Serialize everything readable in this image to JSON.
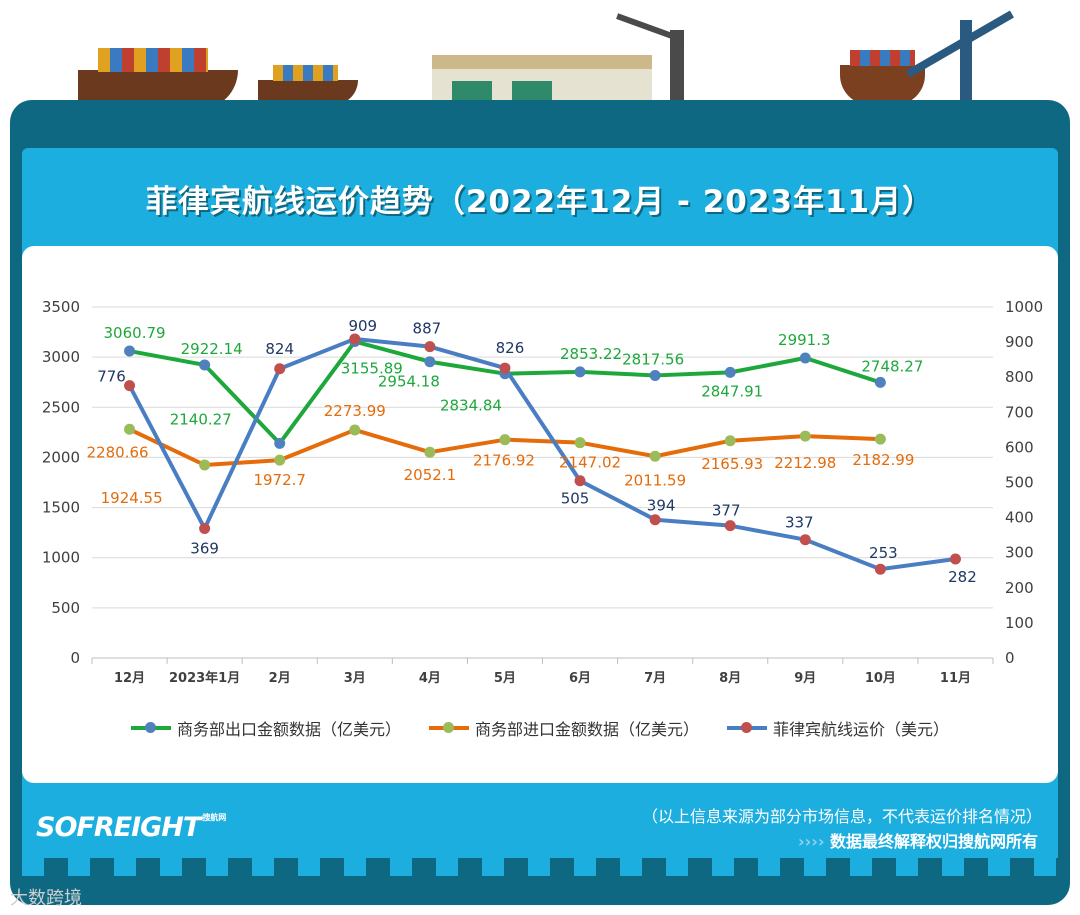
{
  "title": "菲律宾航线运价趋势（2022年12月 - 2023年11月）",
  "footer": {
    "note": "（以上信息来源为部分市场信息，不代表运价排名情况）",
    "arrows": "››››",
    "rights": "数据最终解释权归搜航网所有",
    "logo": "SOFREIGHT",
    "logo_sub": "搜航网",
    "watermark": "大数跨境"
  },
  "chart_data": {
    "type": "line",
    "categories": [
      "12月",
      "2023年1月",
      "2月",
      "3月",
      "4月",
      "5月",
      "6月",
      "7月",
      "8月",
      "9月",
      "10月",
      "11月"
    ],
    "y_left": {
      "range": [
        0,
        3500
      ],
      "ticks": [
        0,
        500,
        1000,
        1500,
        2000,
        2500,
        3000,
        3500
      ]
    },
    "y_right": {
      "range": [
        0,
        1000
      ],
      "ticks": [
        0,
        100,
        200,
        300,
        400,
        500,
        600,
        700,
        800,
        900,
        1000
      ]
    },
    "grid": true,
    "legend_position": "bottom",
    "series": [
      {
        "name": "商务部出口金额数据（亿美元）",
        "axis": "left",
        "color": "#1ea83c",
        "marker_color": "#4f81bd",
        "label_color": "#1ea83c",
        "values": [
          3060.79,
          2922.14,
          2140.27,
          3155.89,
          2954.18,
          2834.84,
          2853.22,
          2817.56,
          2847.91,
          2991.3,
          2748.27,
          null
        ]
      },
      {
        "name": "商务部进口金额数据（亿美元）",
        "axis": "left",
        "color": "#e46c0a",
        "marker_color": "#9bbb59",
        "label_color": "#e46c0a",
        "values": [
          2280.66,
          1924.55,
          1972.7,
          2273.99,
          2052.1,
          2176.92,
          2147.02,
          2011.59,
          2165.93,
          2212.98,
          2182.99,
          null
        ]
      },
      {
        "name": "菲律宾航线运价（美元）",
        "axis": "right",
        "color": "#4a7ec2",
        "marker_color": "#c0504d",
        "label_color": "#1f3864",
        "values": [
          776,
          369,
          824,
          909,
          887,
          826,
          505,
          394,
          377,
          337,
          253,
          282
        ]
      }
    ]
  }
}
